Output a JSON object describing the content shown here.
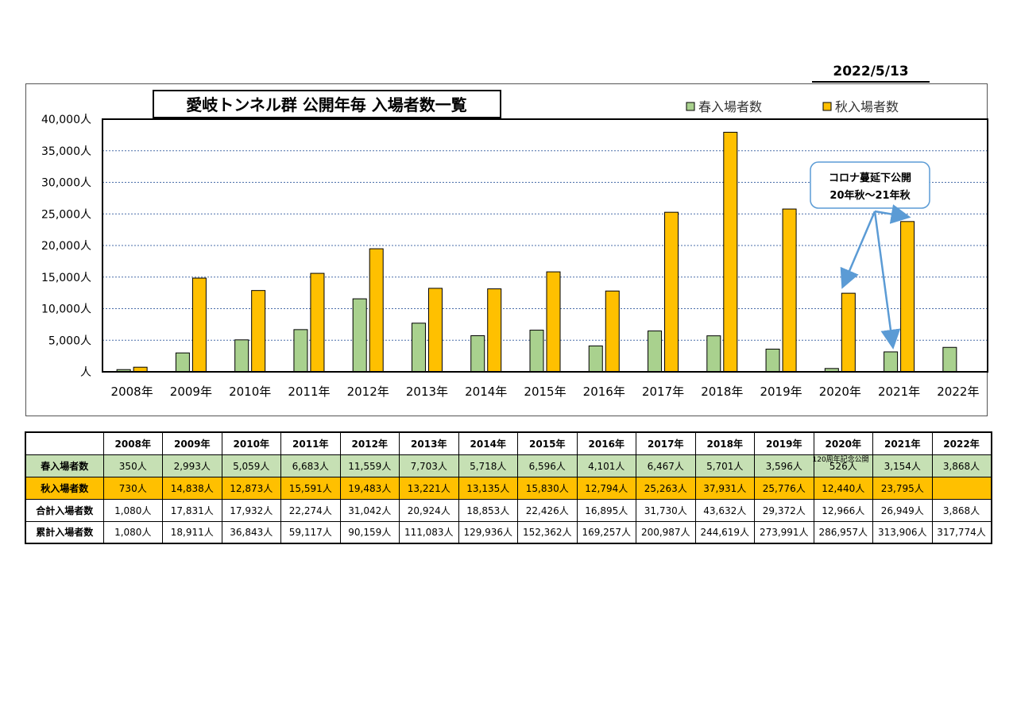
{
  "date": "2022/5/13",
  "colors": {
    "spring": "#a9d18e",
    "autumn": "#ffc000",
    "spring_row": "#c6e0b4",
    "autumn_row": "#ffc000",
    "callout_border": "#5b9bd5"
  },
  "chart_data": {
    "type": "bar",
    "title": "愛岐トンネル群 公開年毎 入場者数一覧",
    "categories": [
      "2008年",
      "2009年",
      "2010年",
      "2011年",
      "2012年",
      "2013年",
      "2014年",
      "2015年",
      "2016年",
      "2017年",
      "2018年",
      "2019年",
      "2020年",
      "2021年",
      "2022年"
    ],
    "series": [
      {
        "name": "春入場者数",
        "values": [
          350,
          2993,
          5059,
          6683,
          11559,
          7703,
          5718,
          6596,
          4101,
          6467,
          5701,
          3596,
          526,
          3154,
          3868
        ]
      },
      {
        "name": "秋入場者数",
        "values": [
          730,
          14838,
          12873,
          15591,
          19483,
          13221,
          13135,
          15830,
          12794,
          25263,
          37931,
          25776,
          12440,
          23795,
          0
        ]
      }
    ],
    "ylim": [
      0,
      40000
    ],
    "yticks": [
      "人",
      "5,000人",
      "10,000人",
      "15,000人",
      "20,000人",
      "25,000人",
      "30,000人",
      "35,000人",
      "40,000人"
    ],
    "legend_position": "top-right",
    "grid": true,
    "annotation": {
      "line1": "コロナ蔓延下公開",
      "line2": "20年秋～21年秋"
    }
  },
  "table": {
    "headers": [
      "",
      "2008年",
      "2009年",
      "2010年",
      "2011年",
      "2012年",
      "2013年",
      "2014年",
      "2015年",
      "2016年",
      "2017年",
      "2018年",
      "2019年",
      "2020年",
      "2021年",
      "2022年"
    ],
    "rows": [
      {
        "label": "春入場者数",
        "values": [
          "350人",
          "2,993人",
          "5,059人",
          "6,683人",
          "11,559人",
          "7,703人",
          "5,718人",
          "6,596人",
          "4,101人",
          "6,467人",
          "5,701人",
          "3,596人",
          "526人",
          "3,154人",
          "3,868人"
        ]
      },
      {
        "label": "秋入場者数",
        "values": [
          "730人",
          "14,838人",
          "12,873人",
          "15,591人",
          "19,483人",
          "13,221人",
          "13,135人",
          "15,830人",
          "12,794人",
          "25,263人",
          "37,931人",
          "25,776人",
          "12,440人",
          "23,795人",
          ""
        ]
      },
      {
        "label": "合計入場者数",
        "values": [
          "1,080人",
          "17,831人",
          "17,932人",
          "22,274人",
          "31,042人",
          "20,924人",
          "18,853人",
          "22,426人",
          "16,895人",
          "31,730人",
          "43,632人",
          "29,372人",
          "12,966人",
          "26,949人",
          "3,868人"
        ]
      },
      {
        "label": "累計入場者数",
        "values": [
          "1,080人",
          "18,911人",
          "36,843人",
          "59,117人",
          "90,159人",
          "111,083人",
          "129,936人",
          "152,362人",
          "169,257人",
          "200,987人",
          "244,619人",
          "273,991人",
          "286,957人",
          "313,906人",
          "317,774人"
        ]
      }
    ],
    "note_2020_spring": "120周年記念公開"
  }
}
